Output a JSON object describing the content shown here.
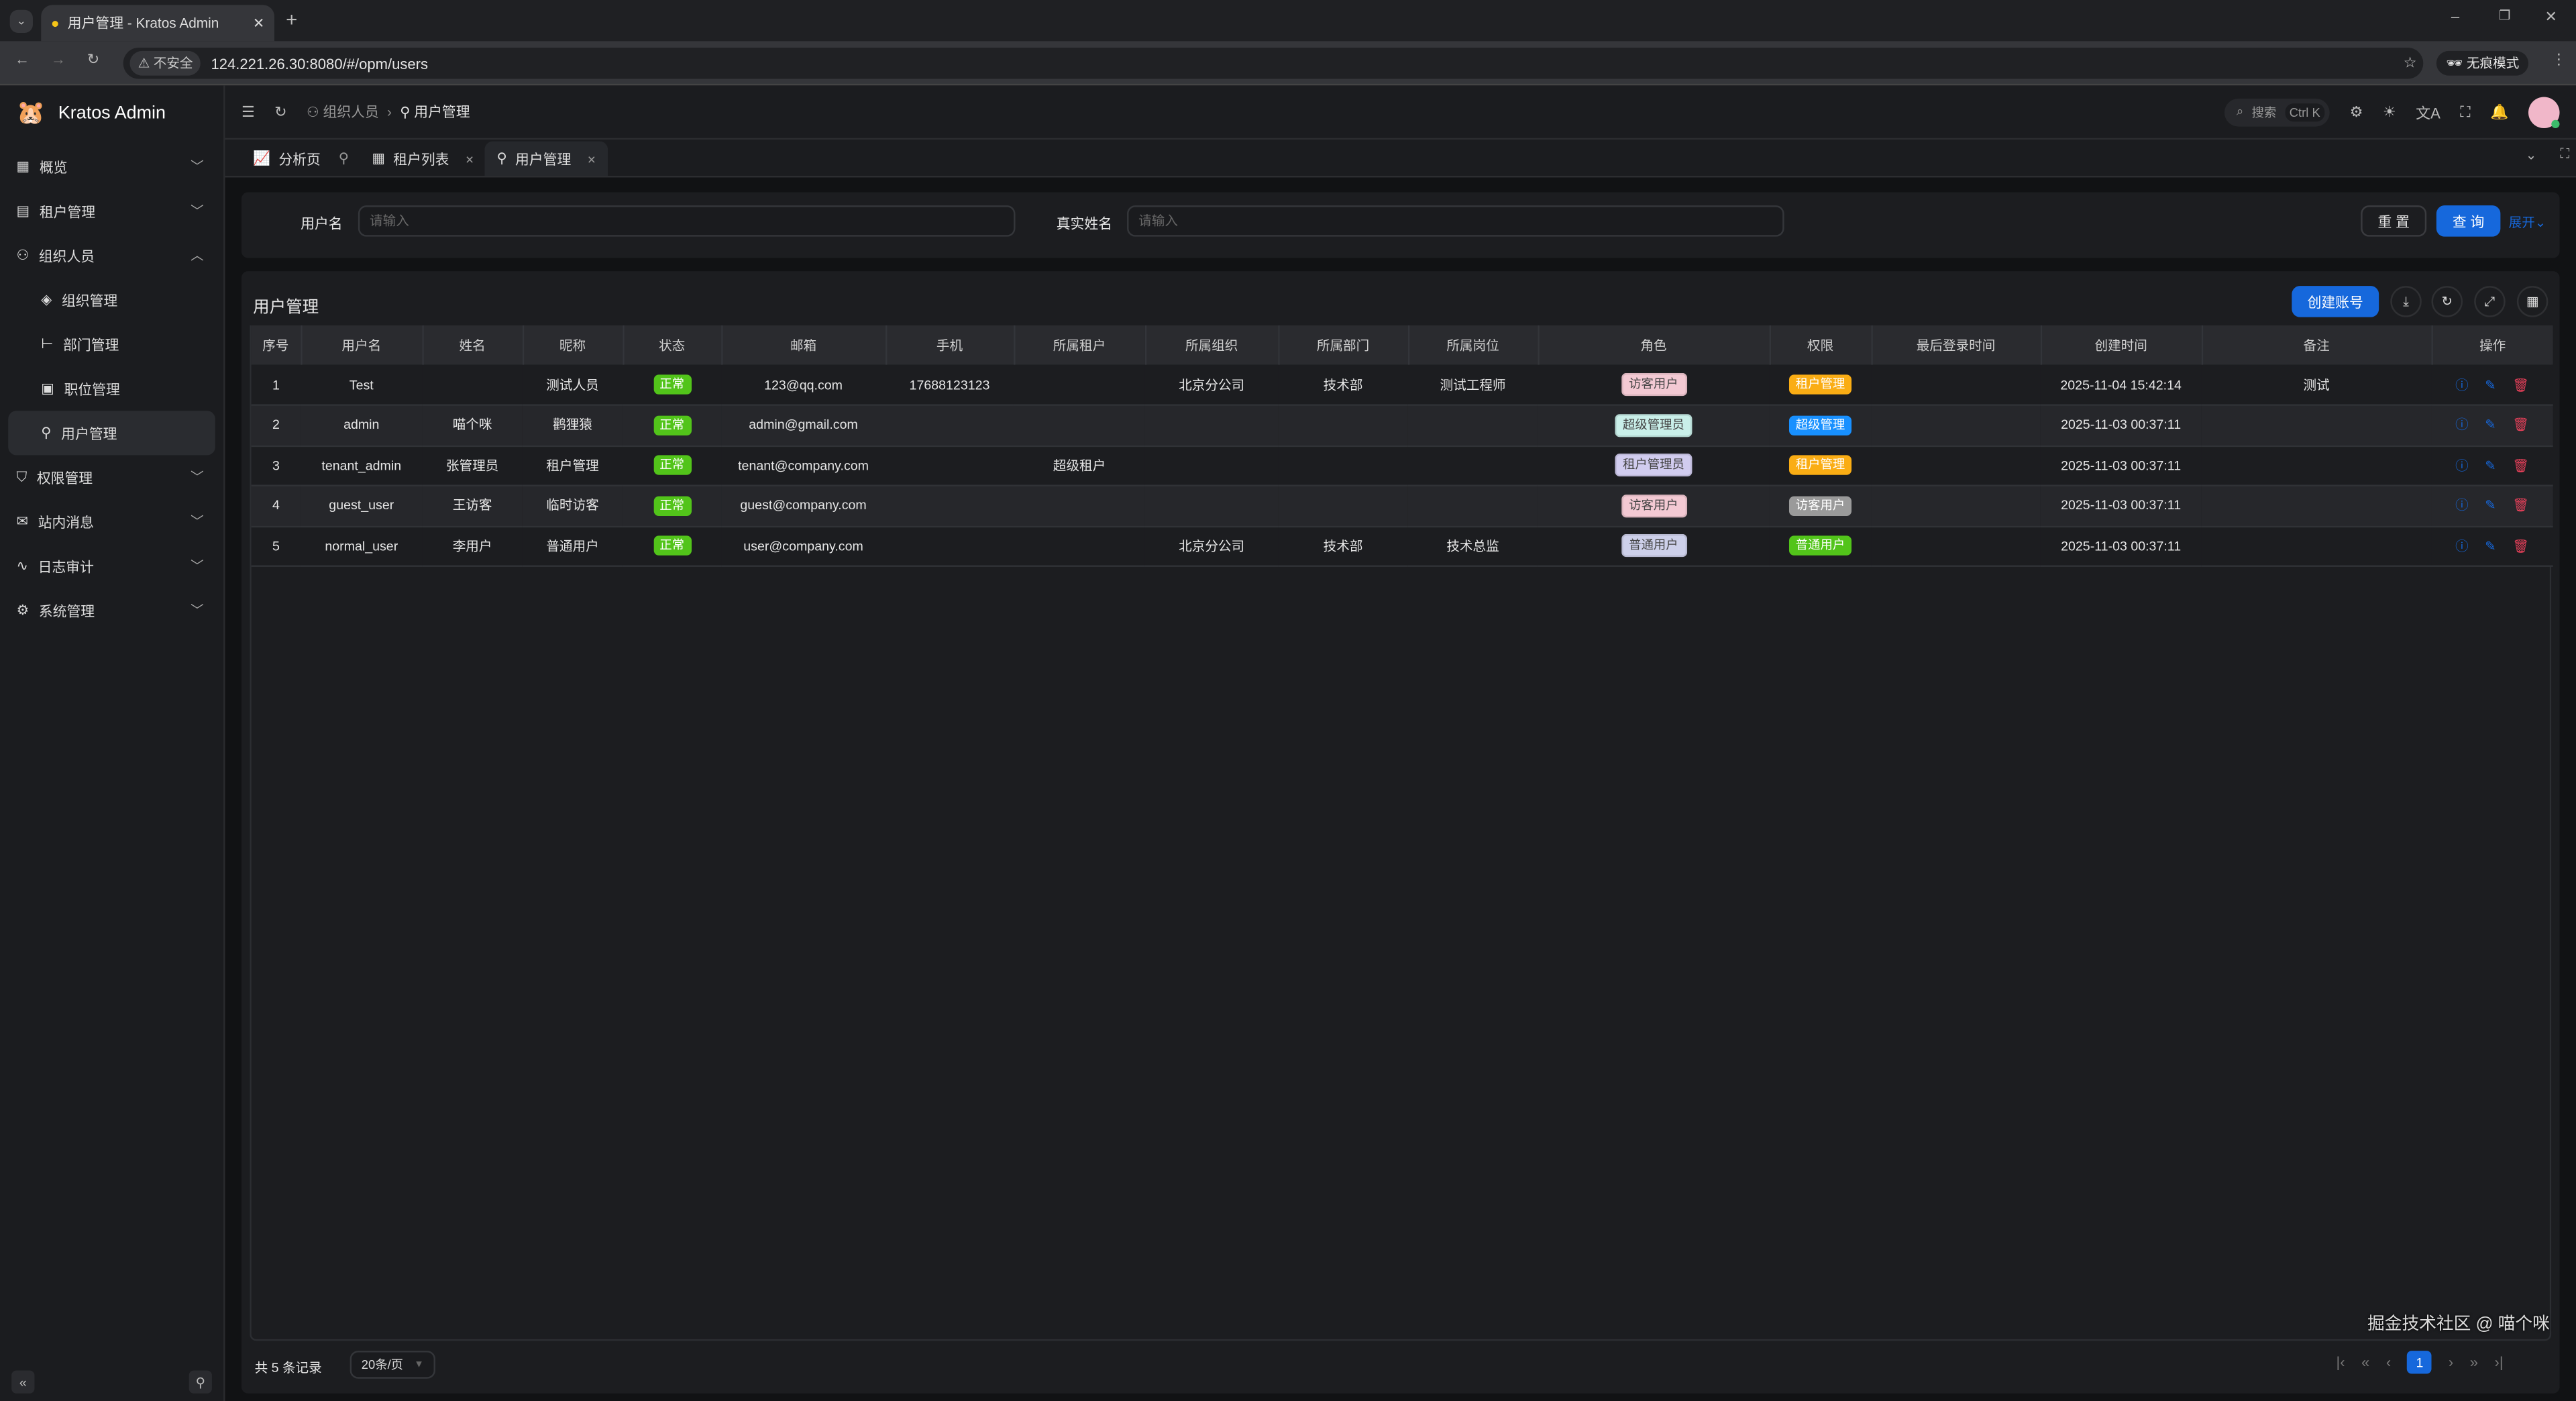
{
  "browser": {
    "tab_title": "用户管理 - Kratos Admin",
    "url": "124.221.26.30:8080/#/opm/users",
    "insecure": "不安全",
    "incognito": "无痕模式"
  },
  "app": {
    "name": "Kratos Admin"
  },
  "sidebar": {
    "items": [
      {
        "label": "概览",
        "icon": "grid-icon",
        "expandable": true
      },
      {
        "label": "租户管理",
        "icon": "building-icon",
        "expandable": true
      },
      {
        "label": "组织人员",
        "icon": "users-icon",
        "expandable": true,
        "expanded": true,
        "children": [
          {
            "label": "组织管理",
            "icon": "layers-icon"
          },
          {
            "label": "部门管理",
            "icon": "tree-icon"
          },
          {
            "label": "职位管理",
            "icon": "briefcase-icon"
          },
          {
            "label": "用户管理",
            "icon": "user-icon",
            "active": true
          }
        ]
      },
      {
        "label": "权限管理",
        "icon": "shield-icon",
        "expandable": true
      },
      {
        "label": "站内消息",
        "icon": "mail-icon",
        "expandable": true
      },
      {
        "label": "日志审计",
        "icon": "activity-icon",
        "expandable": true
      },
      {
        "label": "系统管理",
        "icon": "gear-icon",
        "expandable": true
      }
    ]
  },
  "header": {
    "breadcrumb": [
      "组织人员",
      "用户管理"
    ],
    "search_placeholder": "搜索",
    "search_shortcut": "Ctrl K"
  },
  "page_tabs": [
    {
      "label": "分析页",
      "pinned": true
    },
    {
      "label": "租户列表"
    },
    {
      "label": "用户管理",
      "active": true
    }
  ],
  "search_form": {
    "username_label": "用户名",
    "username_placeholder": "请输入",
    "realname_label": "真实姓名",
    "realname_placeholder": "请输入",
    "reset": "重 置",
    "query": "查 询",
    "expand": "展开"
  },
  "table": {
    "title": "用户管理",
    "create_button": "创建账号",
    "columns": [
      "序号",
      "用户名",
      "姓名",
      "昵称",
      "状态",
      "邮箱",
      "手机",
      "所属租户",
      "所属组织",
      "所属部门",
      "所属岗位",
      "角色",
      "权限",
      "最后登录时间",
      "创建时间",
      "备注",
      "操作"
    ],
    "rows": [
      [
        "1",
        "Test",
        "",
        "测试人员",
        "正常",
        "123@qq.com",
        "17688123123",
        "",
        "北京分公司",
        "技术部",
        "测试工程师",
        "访客用户",
        "租户管理",
        "",
        "2025-11-04 15:42:14",
        "测试"
      ],
      [
        "2",
        "admin",
        "喵个咪",
        "鹳狸猿",
        "正常",
        "admin@gmail.com",
        "",
        "",
        "",
        "",
        "",
        "超级管理员",
        "超级管理",
        "",
        "2025-11-03 00:37:11",
        ""
      ],
      [
        "3",
        "tenant_admin",
        "张管理员",
        "租户管理",
        "正常",
        "tenant@company.com",
        "",
        "超级租户",
        "",
        "",
        "",
        "租户管理员",
        "租户管理",
        "",
        "2025-11-03 00:37:11",
        ""
      ],
      [
        "4",
        "guest_user",
        "王访客",
        "临时访客",
        "正常",
        "guest@company.com",
        "",
        "",
        "",
        "",
        "",
        "访客用户",
        "访客用户",
        "",
        "2025-11-03 00:37:11",
        ""
      ],
      [
        "5",
        "normal_user",
        "李用户",
        "普通用户",
        "正常",
        "user@company.com",
        "",
        "",
        "北京分公司",
        "技术部",
        "技术总监",
        "普通用户",
        "普通用户",
        "",
        "2025-11-03 00:37:11",
        ""
      ]
    ],
    "role_colors": {
      "访客用户": "#f3c9d3",
      "超级管理员": "#c9efe9",
      "租户管理员": "#d1ccef",
      "普通用户": "#cdd0ea"
    },
    "perm_colors": {
      "租户管理": "#faad14",
      "超级管理": "#1890ff",
      "访客用户": "#9a9a9a",
      "普通用户": "#52c41a"
    },
    "status_color": "#52c41a"
  },
  "pagination": {
    "total": "共 5 条记录",
    "page_size": "20条/页",
    "current_page": "1"
  },
  "watermark": "掘金技术社区 @ 喵个咪",
  "colors": {
    "primary": "#1668dc"
  }
}
